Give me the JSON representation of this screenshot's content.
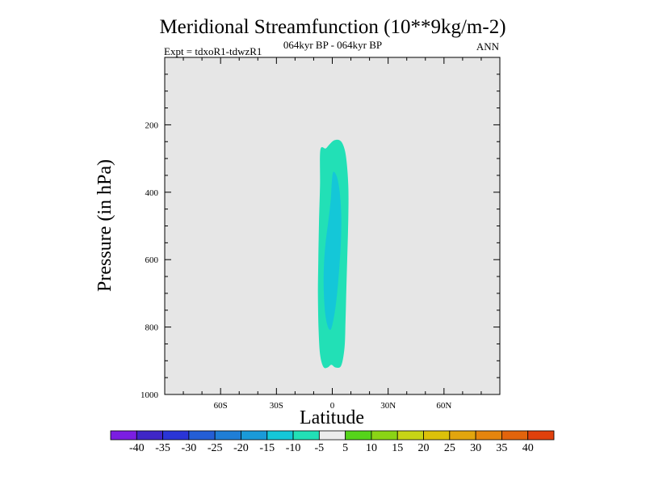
{
  "chart_data": {
    "type": "contour",
    "title": "Meridional Streamfunction (10**9kg/m-2)",
    "subtitle_left": "Expt = tdxoR1-tdwzR1",
    "subtitle_center": "064kyr BP - 064kyr BP",
    "subtitle_right": "ANN",
    "xlabel": "Latitude",
    "ylabel": "Pressure (in hPa)",
    "xlim": [
      -90,
      90
    ],
    "ylim": [
      1000,
      0
    ],
    "x_ticks": [
      {
        "value": -60,
        "label": "60S"
      },
      {
        "value": -30,
        "label": "30S"
      },
      {
        "value": 0,
        "label": "0"
      },
      {
        "value": 30,
        "label": "30N"
      },
      {
        "value": 60,
        "label": "60N"
      }
    ],
    "y_ticks": [
      {
        "value": 200,
        "label": "200"
      },
      {
        "value": 400,
        "label": "400"
      },
      {
        "value": 600,
        "label": "600"
      },
      {
        "value": 800,
        "label": "800"
      },
      {
        "value": 1000,
        "label": "1000"
      }
    ],
    "background_color": "#e6e6e6",
    "contour_regions": [
      {
        "name": "outer-contour",
        "level_range": [
          -10,
          -5
        ],
        "color": "#22e0b6",
        "outline": [
          [
            -3.5,
            270
          ],
          [
            -1.5,
            258
          ],
          [
            1,
            246
          ],
          [
            4,
            246
          ],
          [
            6,
            262
          ],
          [
            7.5,
            300
          ],
          [
            8.6,
            380
          ],
          [
            8.6,
            480
          ],
          [
            8.1,
            580
          ],
          [
            7.6,
            680
          ],
          [
            7.1,
            780
          ],
          [
            6.6,
            860
          ],
          [
            4.8,
            914
          ],
          [
            1.8,
            920
          ],
          [
            -0.5,
            912
          ],
          [
            -2.5,
            920
          ],
          [
            -4.8,
            918
          ],
          [
            -6.6,
            880
          ],
          [
            -7.4,
            800
          ],
          [
            -7.7,
            700
          ],
          [
            -7.5,
            600
          ],
          [
            -7.1,
            480
          ],
          [
            -6.6,
            380
          ],
          [
            -6.4,
            275
          ]
        ]
      },
      {
        "name": "inner-contour",
        "level_range": [
          -15,
          -10
        ],
        "color": "#14c7d8",
        "outline": [
          [
            0.5,
            340
          ],
          [
            2.5,
            355
          ],
          [
            4,
            400
          ],
          [
            4.8,
            470
          ],
          [
            4.6,
            550
          ],
          [
            3.8,
            620
          ],
          [
            2.6,
            700
          ],
          [
            1.2,
            760
          ],
          [
            -0.6,
            805
          ],
          [
            -2.3,
            800
          ],
          [
            -3.8,
            760
          ],
          [
            -4.6,
            690
          ],
          [
            -4.5,
            620
          ],
          [
            -3.6,
            550
          ],
          [
            -2,
            480
          ],
          [
            -0.8,
            420
          ],
          [
            -0.3,
            375
          ]
        ]
      }
    ],
    "colorbar": {
      "colors": [
        "#7b1ee2",
        "#3f26c7",
        "#2a35d6",
        "#245ed6",
        "#1f7ed6",
        "#1a9ad8",
        "#14c7d8",
        "#22e0b6",
        "#ececec",
        "#55d41a",
        "#8ad415",
        "#c7d416",
        "#dcc10a",
        "#e2a50e",
        "#e5850e",
        "#e2640c",
        "#e0400c"
      ],
      "labels": [
        "-40",
        "-35",
        "-30",
        "-25",
        "-20",
        "-15",
        "-10",
        "-5",
        "5",
        "10",
        "15",
        "20",
        "25",
        "30",
        "35",
        "40"
      ]
    }
  }
}
